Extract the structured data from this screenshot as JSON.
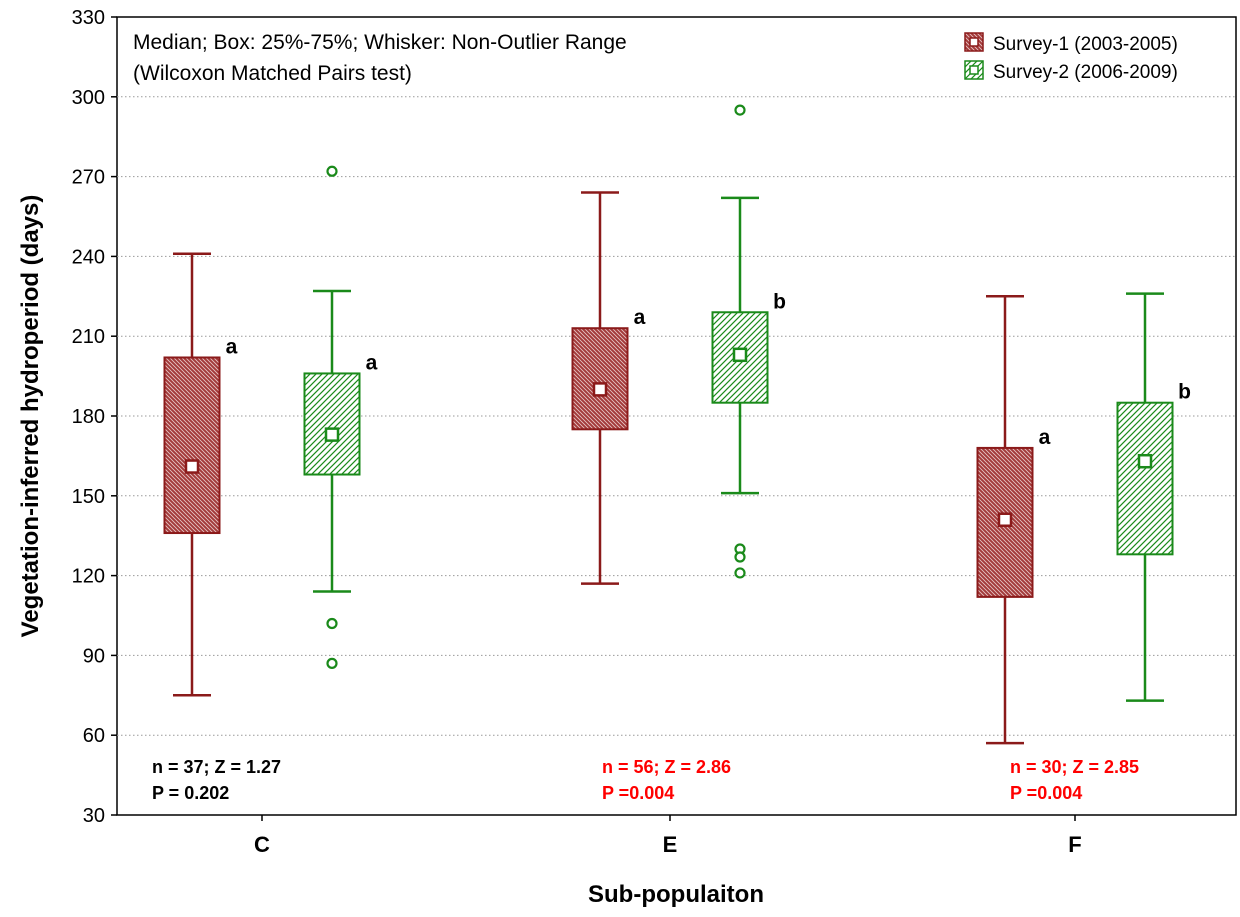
{
  "chart_data": {
    "type": "box",
    "title": "",
    "note_lines": [
      "Median; Box: 25%-75%; Whisker: Non-Outlier Range",
      "(Wilcoxon Matched Pairs test)"
    ],
    "xlabel": "Sub-populaiton",
    "ylabel": "Vegetation-inferred hydroperiod (days)",
    "ylim": [
      30,
      330
    ],
    "yticks": [
      30,
      60,
      90,
      120,
      150,
      180,
      210,
      240,
      270,
      300,
      330
    ],
    "grid": "horizontal dotted",
    "legend_position": "top-right",
    "categories": [
      "C",
      "E",
      "F"
    ],
    "series": [
      {
        "name": "Survey-1 (2003-2005)",
        "color": "#8b1a1a",
        "boxes": [
          {
            "category": "C",
            "median": 161,
            "q1": 136,
            "q3": 202,
            "whisker_low": 75,
            "whisker_high": 241,
            "outliers": [],
            "letter": "a"
          },
          {
            "category": "E",
            "median": 190,
            "q1": 175,
            "q3": 213,
            "whisker_low": 117,
            "whisker_high": 264,
            "outliers": [],
            "letter": "a"
          },
          {
            "category": "F",
            "median": 141,
            "q1": 112,
            "q3": 168,
            "whisker_low": 57,
            "whisker_high": 225,
            "outliers": [],
            "letter": "a"
          }
        ]
      },
      {
        "name": "Survey-2 (2006-2009)",
        "color": "#1a8a1a",
        "boxes": [
          {
            "category": "C",
            "median": 173,
            "q1": 158,
            "q3": 196,
            "whisker_low": 114,
            "whisker_high": 227,
            "outliers": [
              272,
              102,
              87
            ],
            "letter": "a"
          },
          {
            "category": "E",
            "median": 203,
            "q1": 185,
            "q3": 219,
            "whisker_low": 151,
            "whisker_high": 262,
            "outliers": [
              295,
              130,
              127,
              121
            ],
            "letter": "b"
          },
          {
            "category": "F",
            "median": 163,
            "q1": 128,
            "q3": 185,
            "whisker_low": 73,
            "whisker_high": 226,
            "outliers": [],
            "letter": "b"
          }
        ]
      }
    ],
    "stats": [
      {
        "category": "C",
        "line1": "n = 37; Z = 1.27",
        "line2": "P = 0.202",
        "color": "#000000"
      },
      {
        "category": "E",
        "line1": "n = 56; Z = 2.86",
        "line2": "P =0.004",
        "color": "#ff0000"
      },
      {
        "category": "F",
        "line1": "n = 30; Z = 2.85",
        "line2": "P =0.004",
        "color": "#ff0000"
      }
    ]
  }
}
